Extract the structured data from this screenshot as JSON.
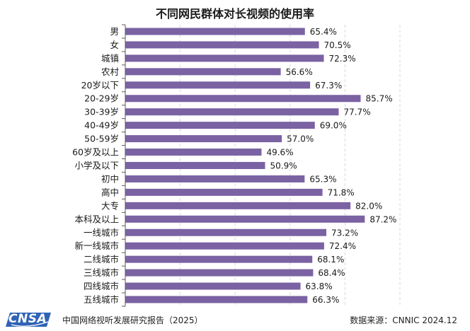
{
  "chart_data": {
    "type": "bar",
    "orientation": "horizontal",
    "title": "不同网民群体对长视频的使用率",
    "categories": [
      "男",
      "女",
      "城镇",
      "农村",
      "20岁以下",
      "20-29岁",
      "30-39岁",
      "40-49岁",
      "50-59岁",
      "60岁及以上",
      "小学及以下",
      "初中",
      "高中",
      "大专",
      "本科及以上",
      "一线城市",
      "新一线城市",
      "二线城市",
      "三线城市",
      "四线城市",
      "五线城市"
    ],
    "values": [
      65.4,
      70.5,
      72.3,
      56.6,
      67.3,
      85.7,
      77.7,
      69.0,
      57.0,
      49.6,
      50.9,
      65.3,
      71.8,
      82.0,
      87.2,
      73.2,
      72.4,
      68.1,
      68.4,
      63.8,
      66.3
    ],
    "value_labels": [
      "65.4%",
      "70.5%",
      "72.3%",
      "56.6%",
      "67.3%",
      "85.7%",
      "77.7%",
      "69.0%",
      "57.0%",
      "49.6%",
      "50.9%",
      "65.3%",
      "71.8%",
      "82.0%",
      "87.2%",
      "73.2%",
      "72.4%",
      "68.1%",
      "68.4%",
      "63.8%",
      "66.3%"
    ],
    "xlim": [
      0,
      100
    ],
    "bar_color": "#7B62A3",
    "grid": "vertical dashed"
  },
  "footer": {
    "logo_text": "CNSA",
    "report": "中国网络视听发展研究报告（2025）",
    "source": "数据来源：CNNIC  2024.12"
  },
  "colors": {
    "logo_blue": "#2F63B5",
    "grid": "#D9D9D9"
  }
}
